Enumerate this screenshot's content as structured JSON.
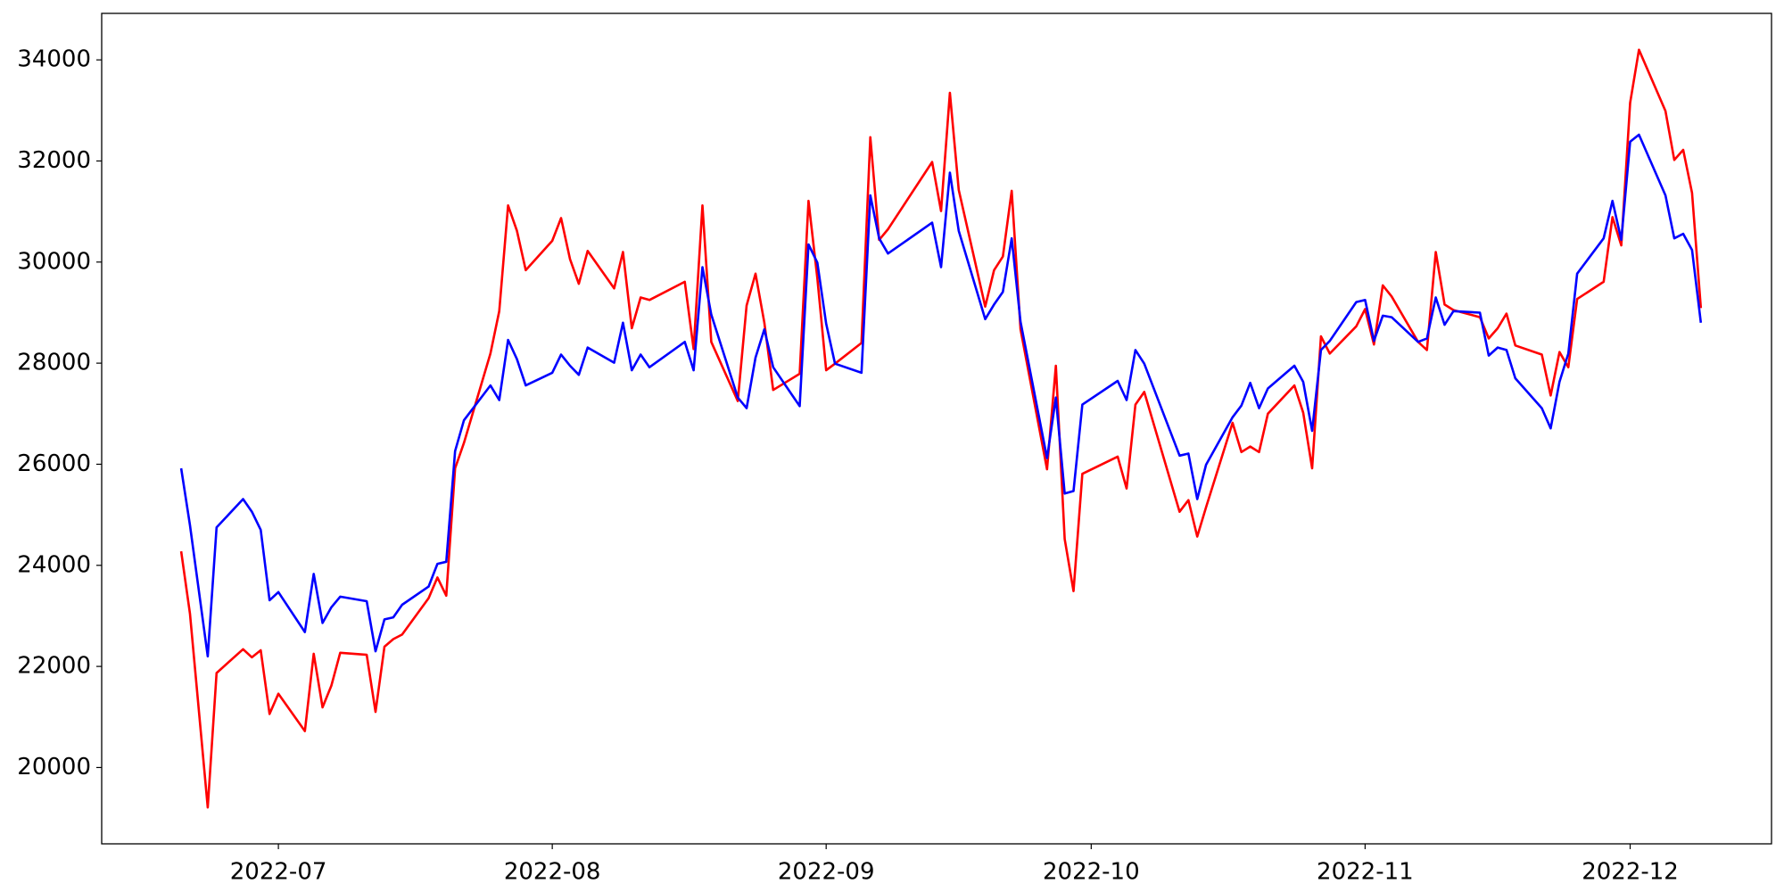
{
  "chart_data": {
    "type": "line",
    "x": [
      "2022-06-20",
      "2022-06-21",
      "2022-06-23",
      "2022-06-24",
      "2022-06-27",
      "2022-06-28",
      "2022-06-29",
      "2022-06-30",
      "2022-07-01",
      "2022-07-04",
      "2022-07-05",
      "2022-07-06",
      "2022-07-07",
      "2022-07-08",
      "2022-07-11",
      "2022-07-12",
      "2022-07-13",
      "2022-07-14",
      "2022-07-15",
      "2022-07-18",
      "2022-07-19",
      "2022-07-20",
      "2022-07-21",
      "2022-07-22",
      "2022-07-25",
      "2022-07-26",
      "2022-07-27",
      "2022-07-28",
      "2022-07-29",
      "2022-08-01",
      "2022-08-02",
      "2022-08-03",
      "2022-08-04",
      "2022-08-05",
      "2022-08-08",
      "2022-08-09",
      "2022-08-10",
      "2022-08-11",
      "2022-08-12",
      "2022-08-16",
      "2022-08-17",
      "2022-08-18",
      "2022-08-19",
      "2022-08-22",
      "2022-08-23",
      "2022-08-24",
      "2022-08-25",
      "2022-08-26",
      "2022-08-29",
      "2022-08-30",
      "2022-08-31",
      "2022-09-01",
      "2022-09-02",
      "2022-09-05",
      "2022-09-06",
      "2022-09-07",
      "2022-09-08",
      "2022-09-13",
      "2022-09-14",
      "2022-09-15",
      "2022-09-16",
      "2022-09-19",
      "2022-09-20",
      "2022-09-21",
      "2022-09-22",
      "2022-09-23",
      "2022-09-26",
      "2022-09-27",
      "2022-09-28",
      "2022-09-29",
      "2022-09-30",
      "2022-10-04",
      "2022-10-05",
      "2022-10-06",
      "2022-10-07",
      "2022-10-11",
      "2022-10-12",
      "2022-10-13",
      "2022-10-14",
      "2022-10-17",
      "2022-10-18",
      "2022-10-19",
      "2022-10-20",
      "2022-10-21",
      "2022-10-24",
      "2022-10-25",
      "2022-10-26",
      "2022-10-27",
      "2022-10-28",
      "2022-10-31",
      "2022-11-01",
      "2022-11-02",
      "2022-11-03",
      "2022-11-04",
      "2022-11-07",
      "2022-11-08",
      "2022-11-09",
      "2022-11-10",
      "2022-11-11",
      "2022-11-14",
      "2022-11-15",
      "2022-11-16",
      "2022-11-17",
      "2022-11-18",
      "2022-11-21",
      "2022-11-22",
      "2022-11-23",
      "2022-11-24",
      "2022-11-25",
      "2022-11-28",
      "2022-11-29",
      "2022-11-30",
      "2022-12-01",
      "2022-12-02",
      "2022-12-05",
      "2022-12-06",
      "2022-12-07",
      "2022-12-08",
      "2022-12-09"
    ],
    "series": [
      {
        "color": "#ff0000",
        "values": [
          24277,
          23040,
          19210,
          21870,
          22340,
          22180,
          22320,
          21060,
          21460,
          20720,
          22250,
          21190,
          21620,
          22270,
          22230,
          21100,
          22390,
          22540,
          22630,
          23350,
          23760,
          23400,
          25920,
          26420,
          28190,
          29030,
          31120,
          30620,
          29840,
          30420,
          30870,
          30060,
          29570,
          30220,
          29480,
          30200,
          28690,
          29300,
          29250,
          29610,
          28280,
          31120,
          28420,
          27250,
          29140,
          29770,
          28800,
          27470,
          27790,
          31210,
          29680,
          27860,
          27990,
          28400,
          32470,
          30440,
          30650,
          31980,
          31010,
          33350,
          31430,
          29120,
          29840,
          30110,
          31410,
          28670,
          25900,
          27950,
          24520,
          23490,
          25810,
          26150,
          25520,
          27180,
          27430,
          25060,
          25290,
          24570,
          25150,
          26820,
          26240,
          26350,
          26240,
          27000,
          27560,
          27020,
          25920,
          28530,
          28190,
          28730,
          29070,
          28370,
          29540,
          29320,
          28420,
          28260,
          30200,
          29160,
          29050,
          28910,
          28490,
          28690,
          28980,
          28350,
          28170,
          27360,
          28220,
          27920,
          29270,
          29610,
          30890,
          30330,
          33150,
          34200,
          32990,
          32020,
          32220,
          31370,
          29090
        ]
      },
      {
        "color": "#0000ff",
        "values": [
          25920,
          24790,
          22200,
          24750,
          25310,
          25060,
          24700,
          23310,
          23470,
          22680,
          23830,
          22860,
          23170,
          23380,
          23290,
          22300,
          22930,
          22970,
          23220,
          23580,
          24030,
          24070,
          26260,
          26870,
          27560,
          27270,
          28460,
          28080,
          27560,
          27810,
          28170,
          27950,
          27770,
          28310,
          28010,
          28800,
          27860,
          28170,
          27920,
          28420,
          27860,
          29900,
          28960,
          27320,
          27110,
          28110,
          28670,
          27920,
          27150,
          30350,
          29990,
          28780,
          27990,
          27810,
          31320,
          30470,
          30170,
          30780,
          29900,
          31770,
          30620,
          28870,
          29160,
          29410,
          30470,
          28820,
          26120,
          27320,
          25420,
          25470,
          27180,
          27650,
          27270,
          28260,
          27990,
          26170,
          26210,
          25310,
          25990,
          26930,
          27160,
          27610,
          27110,
          27500,
          27950,
          27630,
          26660,
          28260,
          28440,
          29210,
          29250,
          28440,
          28940,
          28910,
          28420,
          28490,
          29300,
          28760,
          29030,
          29000,
          28150,
          28310,
          28260,
          27700,
          27110,
          26710,
          27630,
          28190,
          29770,
          30470,
          31210,
          30440,
          32380,
          32520,
          31320,
          30470,
          30560,
          30240,
          28800
        ]
      }
    ],
    "xlim": [
      "2022-06-11",
      "2022-12-17"
    ],
    "xticks": [
      {
        "value": "2022-07-01",
        "label": "2022-07"
      },
      {
        "value": "2022-08-01",
        "label": "2022-08"
      },
      {
        "value": "2022-09-01",
        "label": "2022-09"
      },
      {
        "value": "2022-10-01",
        "label": "2022-10"
      },
      {
        "value": "2022-11-01",
        "label": "2022-11"
      },
      {
        "value": "2022-12-01",
        "label": "2022-12"
      }
    ],
    "ylim": [
      18490,
      34920
    ],
    "yticks": [
      20000,
      22000,
      24000,
      26000,
      28000,
      30000,
      32000,
      34000
    ],
    "grid": false
  }
}
